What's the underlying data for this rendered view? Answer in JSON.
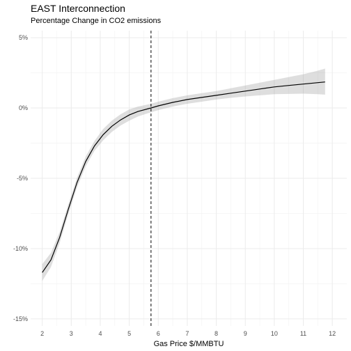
{
  "chart_data": {
    "type": "line",
    "title": "EAST Interconnection",
    "subtitle": "Percentage Change in CO2 emissions",
    "xlabel": "Gas Price $/MMBTU",
    "ylabel": "",
    "xlim": [
      1.6,
      12.5
    ],
    "ylim": [
      -15.5,
      5.5
    ],
    "x_ticks": [
      2,
      3,
      4,
      5,
      6,
      7,
      8,
      9,
      10,
      11,
      12
    ],
    "y_ticks": [
      -15,
      -10,
      -5,
      0,
      5
    ],
    "y_tick_labels": [
      "-15%",
      "-10%",
      "-5%",
      "0%",
      "5%"
    ],
    "grid": true,
    "vline_x": 5.75,
    "series": [
      {
        "x": [
          2.0,
          2.3,
          2.6,
          2.9,
          3.2,
          3.5,
          3.8,
          4.1,
          4.4,
          4.7,
          5.0,
          5.3,
          5.75,
          6.0,
          6.5,
          7.0,
          7.5,
          8.0,
          8.5,
          9.0,
          9.5,
          10.0,
          10.5,
          11.0,
          11.5,
          11.75
        ],
        "y": [
          -11.7,
          -10.8,
          -9.2,
          -7.2,
          -5.3,
          -3.8,
          -2.7,
          -1.9,
          -1.3,
          -0.85,
          -0.5,
          -0.25,
          0.0,
          0.15,
          0.4,
          0.6,
          0.75,
          0.9,
          1.05,
          1.2,
          1.35,
          1.5,
          1.6,
          1.7,
          1.8,
          1.85
        ],
        "lower": [
          -12.3,
          -11.3,
          -9.6,
          -7.55,
          -5.65,
          -4.15,
          -3.05,
          -2.3,
          -1.7,
          -1.25,
          -0.9,
          -0.6,
          -0.3,
          -0.15,
          0.1,
          0.3,
          0.45,
          0.6,
          0.72,
          0.82,
          0.9,
          0.98,
          1.0,
          1.02,
          0.98,
          0.95
        ],
        "upper": [
          -11.1,
          -10.3,
          -8.8,
          -6.85,
          -4.95,
          -3.45,
          -2.35,
          -1.5,
          -0.9,
          -0.45,
          -0.1,
          0.1,
          0.3,
          0.45,
          0.7,
          0.9,
          1.05,
          1.2,
          1.4,
          1.6,
          1.8,
          2.0,
          2.2,
          2.4,
          2.65,
          2.8
        ]
      }
    ]
  }
}
